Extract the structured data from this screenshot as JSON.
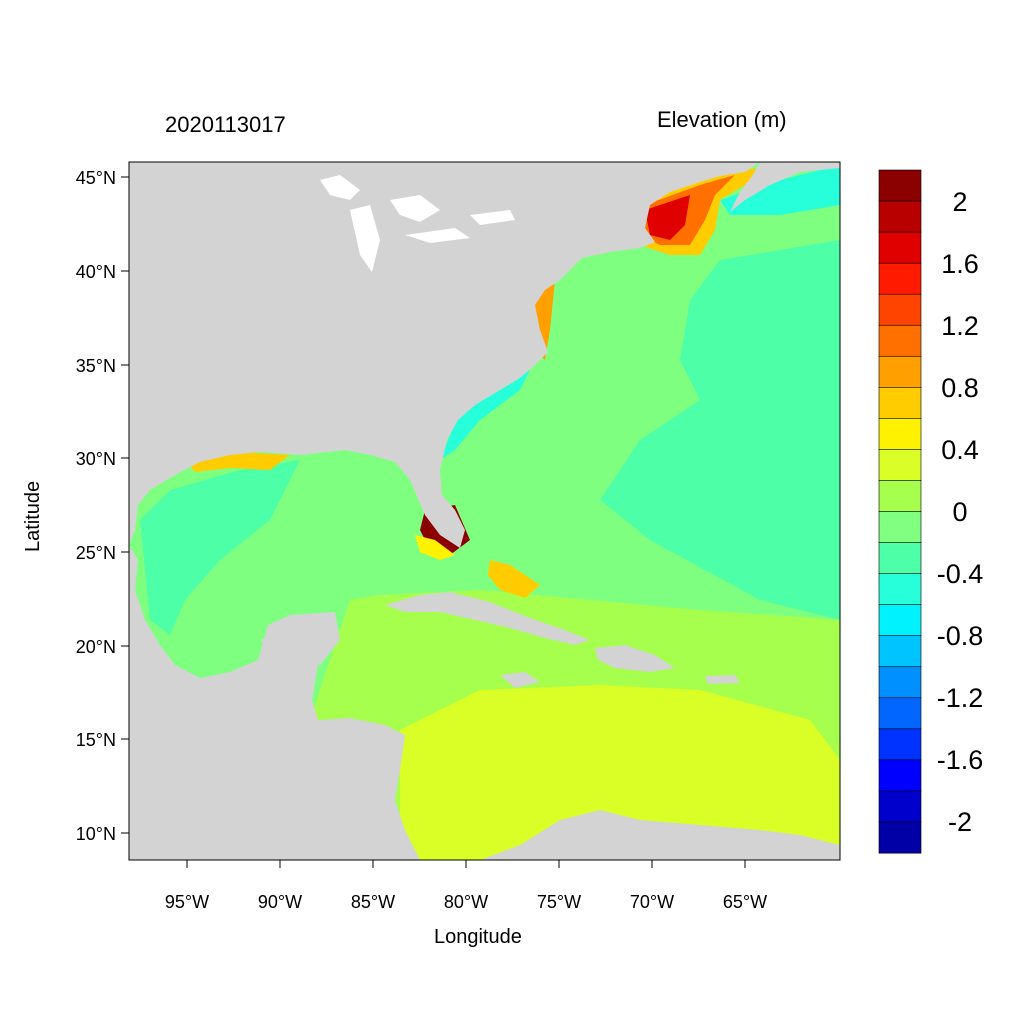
{
  "titles": {
    "left": "2020113017",
    "right": "Elevation (m)"
  },
  "axes": {
    "xlabel": "Longitude",
    "ylabel": "Latitude",
    "x_ticks": [
      "95°W",
      "90°W",
      "85°W",
      "80°W",
      "75°W",
      "70°W",
      "65°W"
    ],
    "y_ticks": [
      "45°N",
      "40°N",
      "35°N",
      "30°N",
      "25°N",
      "20°N",
      "15°N",
      "10°N"
    ]
  },
  "colorbar": {
    "labels": [
      "2",
      "1.6",
      "1.2",
      "0.8",
      "0.4",
      "0",
      "-0.4",
      "-0.8",
      "-1.2",
      "-1.6",
      "-2"
    ],
    "colors": [
      "#8b0000",
      "#b80000",
      "#e00000",
      "#ff1a00",
      "#ff4400",
      "#ff7000",
      "#ff9f00",
      "#ffcc00",
      "#fff200",
      "#d9ff26",
      "#a6ff4d",
      "#80ff80",
      "#4dffa6",
      "#26ffd9",
      "#00f2ff",
      "#00c4ff",
      "#0090ff",
      "#0066ff",
      "#0033ff",
      "#0000ff",
      "#0000cc",
      "#0000a6"
    ]
  },
  "colors": {
    "land": "#d3d3d3",
    "lakes": "#ffffff"
  }
}
